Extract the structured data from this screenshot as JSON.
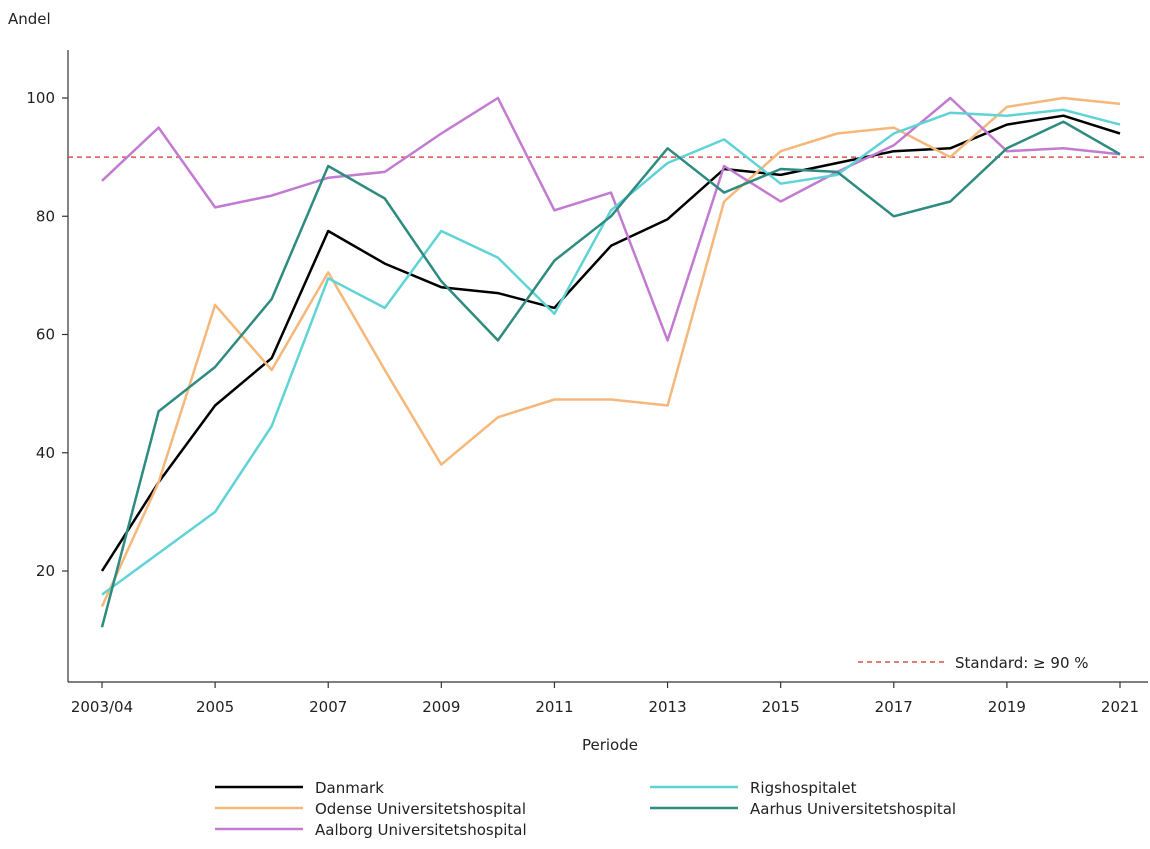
{
  "chart_data": {
    "type": "line",
    "title": "",
    "ylabel": "Andel",
    "xlabel": "Periode",
    "ylim": [
      0,
      108
    ],
    "yticks": [
      20,
      40,
      60,
      80,
      100
    ],
    "x": [
      "2003/04",
      "2004",
      "2005",
      "2006",
      "2007",
      "2008",
      "2009",
      "2010",
      "2011",
      "2012",
      "2013",
      "2014",
      "2015",
      "2016",
      "2017",
      "2018",
      "2019",
      "2020",
      "2021"
    ],
    "xtick_labels": [
      "2003/04",
      "2005",
      "2007",
      "2009",
      "2011",
      "2013",
      "2015",
      "2017",
      "2019",
      "2021"
    ],
    "grid": false,
    "reference_line": {
      "value": 90,
      "label": "Standard: ≥ 90 %",
      "color": "#d9534f",
      "style": "dashed"
    },
    "series": [
      {
        "name": "Danmark",
        "color": "#000000",
        "values": [
          20,
          35,
          48,
          56,
          77.5,
          72,
          68,
          67,
          64.5,
          75,
          79.5,
          88,
          87,
          89,
          91,
          91.5,
          95.5,
          97,
          94
        ]
      },
      {
        "name": "Odense Universitetshospital",
        "color": "#f5b87a",
        "values": [
          14,
          35,
          65,
          54,
          70.5,
          54,
          38,
          46,
          49,
          49,
          48,
          82.5,
          91,
          94,
          95,
          90,
          98.5,
          100,
          99
        ]
      },
      {
        "name": "Aalborg Universitetshospital",
        "color": "#c27bd1",
        "values": [
          86,
          95,
          81.5,
          83.5,
          86.5,
          87.5,
          94,
          100,
          81,
          84,
          59,
          88.5,
          82.5,
          87.5,
          92,
          100,
          91,
          91.5,
          90.5
        ]
      },
      {
        "name": "Rigshospitalet",
        "color": "#5fd3d6",
        "values": [
          16,
          23,
          30,
          44.5,
          69.5,
          64.5,
          77.5,
          73,
          63.5,
          81,
          89,
          93,
          85.5,
          87,
          94,
          97.5,
          97,
          98,
          95.5
        ]
      },
      {
        "name": "Aarhus Universitetshospital",
        "color": "#2e8b80",
        "values": [
          10.5,
          47,
          54.5,
          66,
          88.5,
          83,
          69,
          59,
          72.5,
          80,
          91.5,
          84,
          88,
          87.5,
          80,
          82.5,
          91.5,
          96,
          90.5
        ]
      }
    ],
    "legend_placement": "bottom",
    "legend_order": [
      "Danmark",
      "Rigshospitalet",
      "Odense Universitetshospital",
      "Aarhus Universitetshospital",
      "Aalborg Universitetshospital"
    ]
  }
}
